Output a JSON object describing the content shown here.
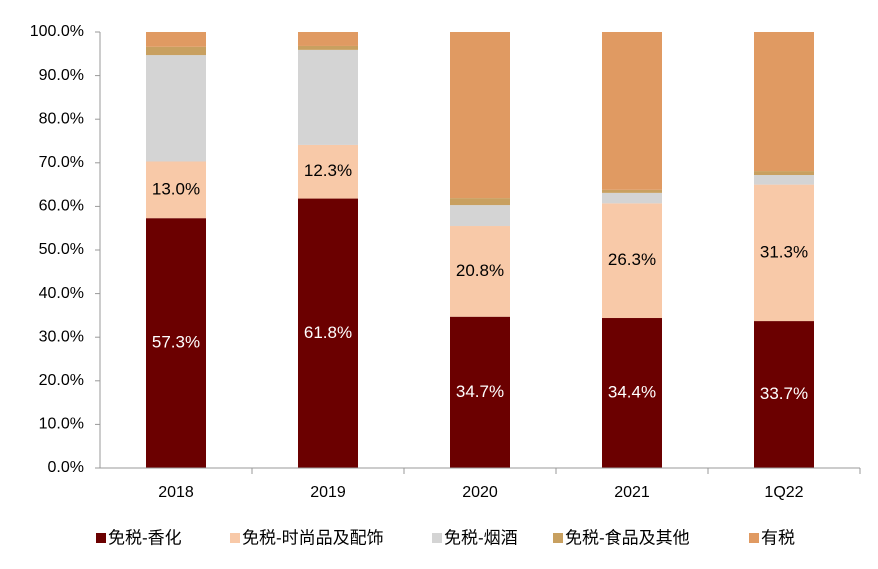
{
  "chart_data": {
    "type": "stacked_bar",
    "categories": [
      "2018",
      "2019",
      "2020",
      "2021",
      "1Q22"
    ],
    "series": [
      {
        "name": "免税-香化",
        "color": "#6b0000",
        "values": [
          57.3,
          61.8,
          34.7,
          34.4,
          33.7
        ],
        "value_labels": [
          "57.3%",
          "61.8%",
          "34.7%",
          "34.4%",
          "33.7%"
        ]
      },
      {
        "name": "免税-时尚品及配饰",
        "color": "#f8c9a8",
        "values": [
          13.0,
          12.3,
          20.8,
          26.3,
          31.3
        ],
        "value_labels": [
          "13.0%",
          "12.3%",
          "20.8%",
          "26.3%",
          "31.3%"
        ]
      },
      {
        "name": "免税-烟酒",
        "color": "#d4d4d4",
        "values": [
          24.4,
          21.8,
          4.8,
          2.4,
          2.2
        ]
      },
      {
        "name": "免税-食品及其他",
        "color": "#c8a060",
        "values": [
          1.9,
          0.9,
          1.6,
          0.7,
          0.9
        ]
      },
      {
        "name": "有税",
        "color": "#e09a62",
        "values": [
          3.4,
          3.2,
          38.1,
          36.2,
          31.9
        ]
      }
    ],
    "ylim": [
      0,
      100
    ],
    "yticks": [
      {
        "value": 0,
        "label": "0.0%"
      },
      {
        "value": 10,
        "label": "10.0%"
      },
      {
        "value": 20,
        "label": "20.0%"
      },
      {
        "value": 30,
        "label": "30.0%"
      },
      {
        "value": 40,
        "label": "40.0%"
      },
      {
        "value": 50,
        "label": "50.0%"
      },
      {
        "value": 60,
        "label": "60.0%"
      },
      {
        "value": 70,
        "label": "70.0%"
      },
      {
        "value": 80,
        "label": "80.0%"
      },
      {
        "value": 90,
        "label": "90.0%"
      },
      {
        "value": 100,
        "label": "100.0%"
      }
    ],
    "grid": false,
    "legend": "bottom"
  }
}
